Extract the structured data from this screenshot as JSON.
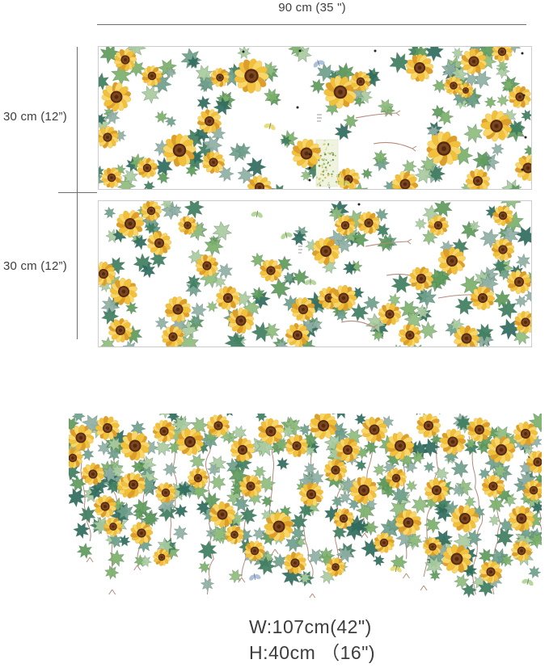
{
  "measurements": {
    "top_width": "90 cm (35 \")",
    "sheet1_height": "30 cm (12”)",
    "sheet2_height": "30 cm (12”)",
    "assembled_width": "W:107cm(42\")",
    "assembled_height": "H:40cm （16\")"
  },
  "artwork": {
    "sheet1": "sunflower-ivy-decal-sheet-1",
    "sheet2": "sunflower-ivy-decal-sheet-2",
    "assembled": "assembled-hanging-sunflower-vine"
  },
  "palette": {
    "petal_gold": "#f2c13c",
    "petal_light": "#f8d768",
    "petal_deep": "#dd9e2a",
    "center_brown": "#7a4520",
    "center_dark": "#54290e",
    "leaf_greens": [
      "#8fbc7e",
      "#5e9a5b",
      "#3e7d5f",
      "#a9cba0",
      "#6fa08c",
      "#2f6b5e",
      "#8fafa5",
      "#7bb06a"
    ],
    "stem": "#b5897b",
    "line_color": "#6e6e6e",
    "text_color": "#3d3d3d",
    "border_color": "#cccccc",
    "butterfly_blue": "#9fb6d9",
    "butterfly_yellow": "#e3da62",
    "butterfly_green": "#a8d18a"
  }
}
